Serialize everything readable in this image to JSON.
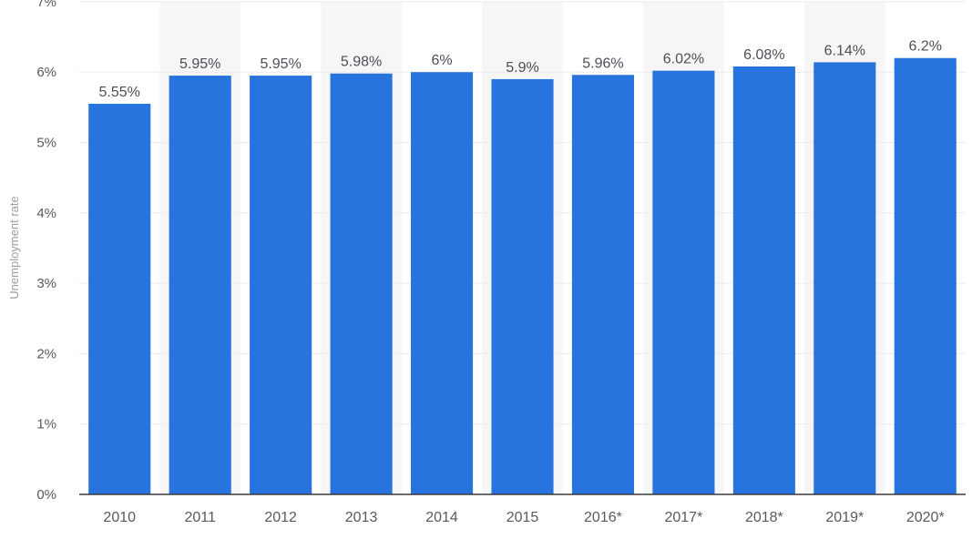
{
  "chart_data": {
    "type": "bar",
    "categories": [
      "2010",
      "2011",
      "2012",
      "2013",
      "2014",
      "2015",
      "2016*",
      "2017*",
      "2018*",
      "2019*",
      "2020*"
    ],
    "values": [
      5.55,
      5.95,
      5.95,
      5.98,
      6,
      5.9,
      5.96,
      6.02,
      6.08,
      6.14,
      6.2
    ],
    "data_labels": [
      "5.55%",
      "5.95%",
      "5.95%",
      "5.98%",
      "6%",
      "5.9%",
      "5.96%",
      "6.02%",
      "6.08%",
      "6.14%",
      "6.2%"
    ],
    "ylabel": "Unemployment rate",
    "xlabel": "",
    "ylim": [
      0,
      7
    ],
    "yticks": [
      0,
      1,
      2,
      3,
      4,
      5,
      6,
      7
    ],
    "ytick_labels": [
      "0%",
      "1%",
      "2%",
      "3%",
      "4%",
      "5%",
      "6%",
      "7%"
    ],
    "grid": true,
    "bar_color": "#2874df"
  }
}
